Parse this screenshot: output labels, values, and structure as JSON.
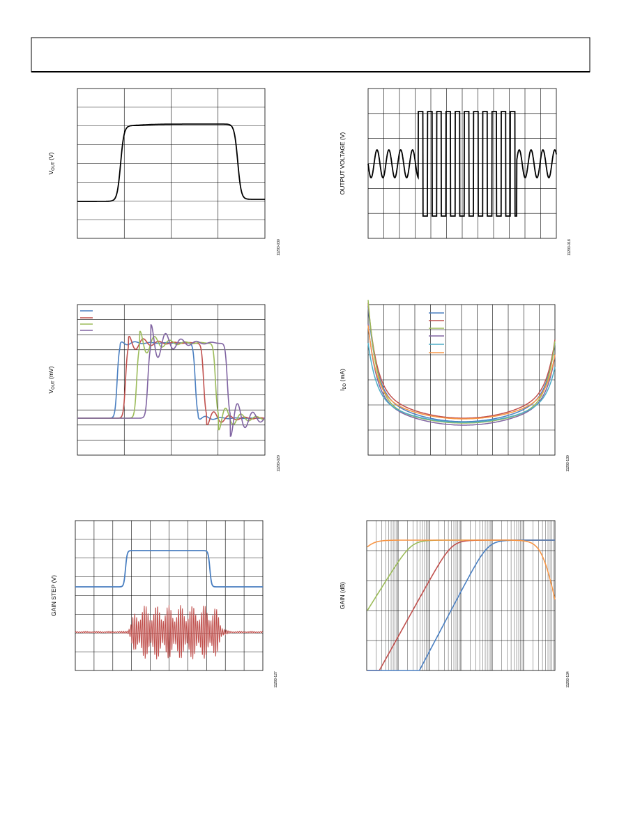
{
  "figures": [
    {
      "y_label": {
        "text": "V",
        "sub": "OUT",
        "unit": " (V)"
      },
      "code": "11293-030"
    },
    {
      "y_label": {
        "text": "OUTPUT VOLTAGE (V)"
      },
      "code": "11293-018"
    },
    {
      "y_label": {
        "text": "V",
        "sub": "OUT",
        "unit": " (mV)"
      },
      "code": "11293-020"
    },
    {
      "y_label": {
        "text": "I",
        "sub": "DD",
        "unit": " (mA)"
      },
      "code": "11293-130"
    },
    {
      "y_label": {
        "text": "GAIN STEP (V)"
      },
      "code": "11293-127"
    },
    {
      "y_label": {
        "text": "GAIN (dB)"
      },
      "code": "11293-134"
    }
  ]
}
